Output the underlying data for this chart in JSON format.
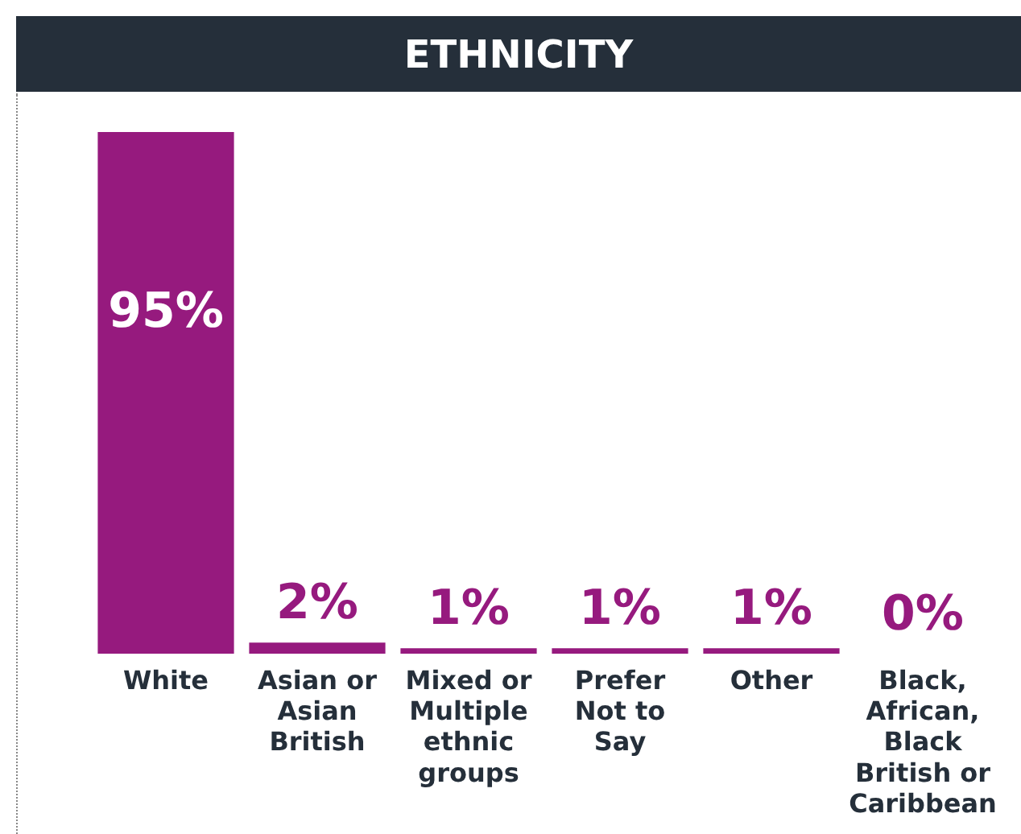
{
  "chart_data": {
    "type": "bar",
    "title": "ETHNICITY",
    "categories": [
      "White",
      "Asian or Asian British",
      "Mixed or Multiple ethnic groups",
      "Prefer Not to Say",
      "Other",
      "Black, African, Black British or Caribbean"
    ],
    "values": [
      95,
      2,
      1,
      1,
      1,
      0
    ],
    "value_labels": [
      "95%",
      "2%",
      "1%",
      "1%",
      "1%",
      "0%"
    ],
    "color": "#961a7e",
    "grid": false,
    "legend": false
  }
}
